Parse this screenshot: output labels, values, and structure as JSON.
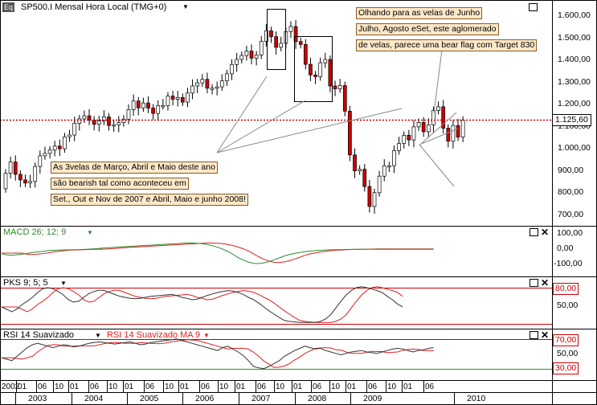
{
  "main_panel": {
    "symbol_badge": "Eq",
    "title": "SP500.I Mensal Hora Local (TMG+0)",
    "price_marker": "1.125,60",
    "y_ticks": [
      "1.600,00",
      "1.500,00",
      "1.400,00",
      "1.300,00",
      "1.200,00",
      "1.100,00",
      "1.000,00",
      "900,00",
      "800,00",
      "700,00"
    ],
    "annotation_left": [
      "As 3velas de Março, Abril e Maio deste ano",
      "são bearish tal como aconteceu em",
      "Set., Out e Nov de 2007 e Abril, Maio e junho 2008!"
    ],
    "annotation_right": [
      "Olhando para as velas de Junho",
      "Julho, Agosto eSet, este aglomerado",
      "de velas, parece uma bear flag com Target 830"
    ]
  },
  "macd_panel": {
    "title": "MACD 26; 12; 9",
    "y_ticks": [
      "100,00",
      "0,00",
      "-100,00"
    ]
  },
  "pks_panel": {
    "title": "PKS 9; 5; 5",
    "level_tag": "80,00",
    "y_ticks": [
      "50,00"
    ]
  },
  "rsi_panel": {
    "title_main": "RSI 14 Suavizado",
    "title_ma": "RSI 14 Suavizado MA 9",
    "tag_upper": "70,00",
    "tag_lower": "30,00",
    "y_ticks": [
      "50,00"
    ]
  },
  "x_axis": {
    "months": [
      "2002",
      "01",
      "06",
      "10",
      "01",
      "06",
      "10",
      "01",
      "06",
      "10",
      "01",
      "06",
      "10",
      "01",
      "06",
      "10",
      "01",
      "06",
      "10",
      "01",
      "06",
      "10",
      "01",
      "06"
    ],
    "years": [
      "2003",
      "2004",
      "2005",
      "2006",
      "2007",
      "2008",
      "2009",
      "2010"
    ]
  },
  "colors": {
    "bull_candle": "#ffffff",
    "bear_candle": "#cc0000",
    "macd_line": "#2e8b2e",
    "signal_line": "#e02020",
    "price_line": "#cc0000",
    "level_line": "#cc0000",
    "note_bg": "#fde9c9"
  }
}
